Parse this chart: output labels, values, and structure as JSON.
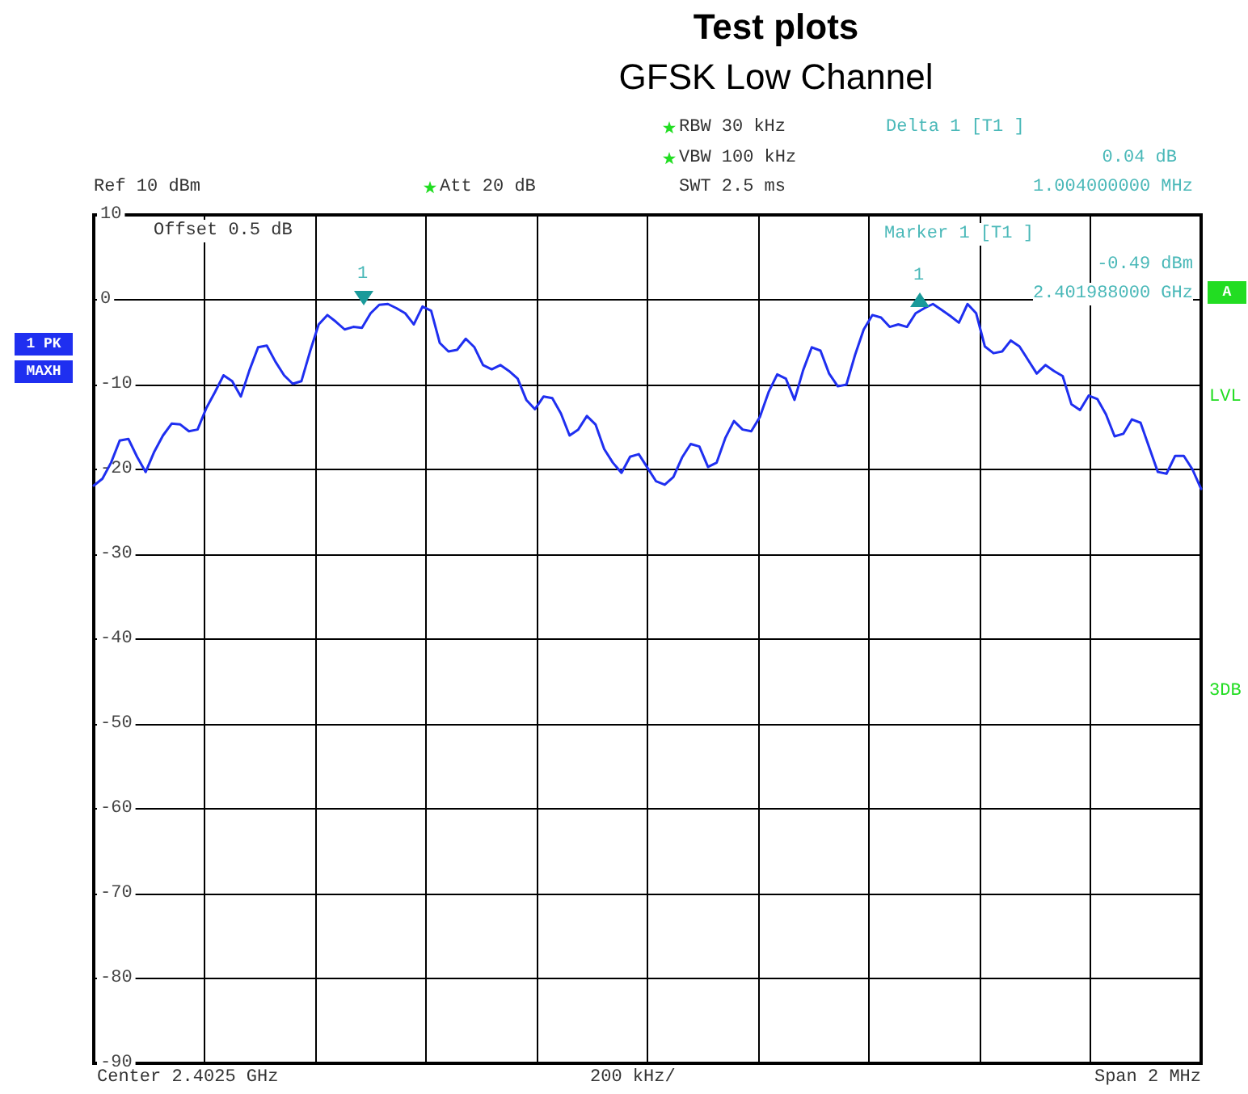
{
  "chart_data": {
    "type": "line",
    "title": "Test plots",
    "subtitle": "GFSK Low Channel",
    "ylim": [
      -90,
      10
    ],
    "yticks": [
      10,
      0,
      -10,
      -20,
      -30,
      -40,
      -50,
      -60,
      -70,
      -80,
      -90
    ],
    "tick_labels": "y",
    "grid": true,
    "marker": "none",
    "line_style": "solid",
    "categories": [
      null,
      null,
      null,
      null,
      null,
      null,
      null,
      null,
      null,
      null,
      null,
      null,
      null,
      null,
      null,
      null,
      null,
      null,
      null,
      null,
      null,
      null,
      null,
      null,
      null,
      null,
      null,
      null,
      null,
      null,
      null,
      null,
      null,
      null,
      null,
      null,
      null,
      null,
      null,
      null,
      null,
      null,
      null,
      null,
      null,
      null,
      null,
      null,
      null,
      null,
      null,
      null,
      null,
      null,
      null,
      null,
      null,
      null,
      null,
      null,
      null,
      null,
      null,
      null,
      null,
      null,
      null,
      null,
      null,
      null,
      null,
      null,
      null,
      null,
      null,
      null,
      null,
      null,
      null,
      null,
      null,
      null,
      null,
      null,
      null,
      null,
      null,
      null,
      null,
      null,
      null,
      null,
      null,
      null,
      null,
      null,
      null,
      null,
      null,
      null,
      null,
      null,
      null,
      null,
      null,
      null,
      null,
      null,
      null,
      null,
      null,
      null,
      null,
      null,
      null,
      null,
      null,
      null,
      null,
      null,
      null,
      null,
      null,
      null,
      null,
      null,
      null,
      null,
      null
    ],
    "series": [
      {
        "color": "#1f2ff0",
        "values": [
          -21.9,
          -21.1,
          -19.2,
          -16.6,
          -16.4,
          -18.5,
          -20.3,
          -17.9,
          -16.0,
          -14.6,
          -14.7,
          -15.5,
          -15.3,
          -12.8,
          -10.9,
          -8.9,
          -9.6,
          -11.4,
          -8.3,
          -5.6,
          -5.4,
          -7.3,
          -8.9,
          -9.9,
          -9.6,
          -6.1,
          -2.9,
          -1.8,
          -2.6,
          -3.5,
          -3.2,
          -3.3,
          -1.6,
          -0.6,
          -0.5,
          -1.0,
          -1.6,
          -2.9,
          -0.8,
          -1.3,
          -5.1,
          -6.1,
          -5.9,
          -4.6,
          -5.6,
          -7.7,
          -8.2,
          -7.7,
          -8.4,
          -9.3,
          -11.8,
          -12.9,
          -11.4,
          -11.6,
          -13.4,
          -16.0,
          -15.3,
          -13.7,
          -14.7,
          -17.6,
          -19.2,
          -20.4,
          -18.5,
          -18.2,
          -19.8,
          -21.4,
          -21.8,
          -20.9,
          -18.6,
          -17.0,
          -17.3,
          -19.7,
          -19.2,
          -16.3,
          -14.3,
          -15.3,
          -15.5,
          -13.8,
          -10.9,
          -8.8,
          -9.3,
          -11.8,
          -8.3,
          -5.6,
          -6.0,
          -8.7,
          -10.2,
          -10.0,
          -6.5,
          -3.5,
          -1.8,
          -2.1,
          -3.2,
          -2.9,
          -3.2,
          -1.6,
          -1.0,
          -0.5,
          -1.2,
          -1.9,
          -2.7,
          -0.5,
          -1.6,
          -5.5,
          -6.3,
          -6.1,
          -4.8,
          -5.5,
          -7.1,
          -8.7,
          -7.7,
          -8.4,
          -9.0,
          -12.3,
          -13.0,
          -11.3,
          -11.7,
          -13.5,
          -16.1,
          -15.8,
          -14.1,
          -14.5,
          -17.4,
          -20.3,
          -20.5,
          -18.4,
          -18.4,
          -20.0,
          -22.3
        ]
      }
    ],
    "annotations": [
      "1",
      "1",
      "Ref 10 dBm",
      "Att 20 dB",
      "RBW 30 kHz",
      "VBW 100 kHz",
      "SWT 2.5 ms",
      "Delta 1 [T1 ]",
      "0.04 dB",
      "1.004000000 MHz",
      "Offset 0.5 dB",
      "Marker 1 [T1 ]",
      "-0.49 dBm",
      "2.401988000 GHz",
      "1 PK",
      "MAXH",
      "A",
      "LVL",
      "3DB",
      "Center 2.4025 GHz",
      "200 kHz/",
      "Span 2 MHz"
    ]
  }
}
